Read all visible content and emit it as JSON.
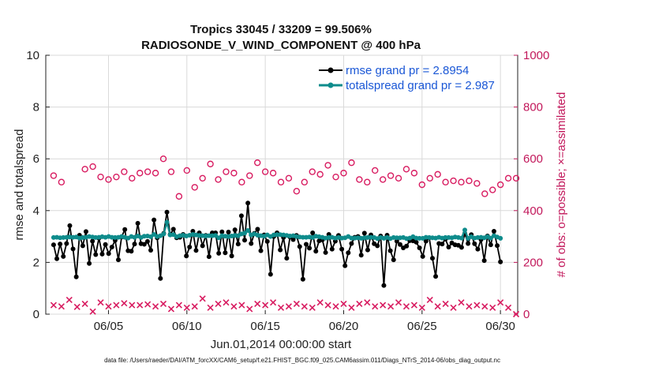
{
  "chart_data": {
    "type": "line",
    "title_line1": "Tropics 33045 / 33209 = 99.506%",
    "title_line2": "RADIOSONDE_V_WIND_COMPONENT @ 400 hPa",
    "xlabel": "Jun.01,2014 00:00:00 start",
    "ylabel_left": "rmse and totalspread",
    "ylabel_right": "# of obs: o=possible; ×=assimilated",
    "footnote": "data file: /Users/raeder/DAI/ATM_forcXX/CAM6_setup/f.e21.FHIST_BGC.f09_025.CAM6assim.011/Diags_NTrS_2014-06/obs_diag_output.nc",
    "xlim": [
      0.5,
      30.6
    ],
    "ylim_left": [
      0,
      10
    ],
    "ylim_right": [
      0,
      1000
    ],
    "x_ticks": [
      4.5,
      9.5,
      14.5,
      19.5,
      24.5,
      29.5
    ],
    "x_tick_labels": [
      "06/05",
      "06/10",
      "06/15",
      "06/20",
      "06/25",
      "06/30"
    ],
    "y_left_ticks": [
      "0",
      "2",
      "4",
      "6",
      "8",
      "10"
    ],
    "y_right_ticks": [
      "0",
      "200",
      "400",
      "600",
      "800",
      "1000"
    ],
    "colors": {
      "rmse": "#000000",
      "spread": "#0f8c8c",
      "obs": "#d81b60",
      "legend_text": "#1a57d6"
    },
    "series": [
      {
        "name": "rmse grand pr = 2.8954",
        "axis": "left",
        "values": [
          2.68,
          2.14,
          2.71,
          2.23,
          2.73,
          3.42,
          2.52,
          1.44,
          3.05,
          2.64,
          3.19,
          1.96,
          2.82,
          2.3,
          2.94,
          2.32,
          2.69,
          2.34,
          2.59,
          2.85,
          2.1,
          2.98,
          3.27,
          2.45,
          2.43,
          2.71,
          3.51,
          2.72,
          2.7,
          2.81,
          2.47,
          3.64,
          2.95,
          1.38,
          3.12,
          3.94,
          3.08,
          3.28,
          2.95,
          2.97,
          3.08,
          2.25,
          2.59,
          3.2,
          2.46,
          3.14,
          2.64,
          3.04,
          2.22,
          3.14,
          3.14,
          2.35,
          3.18,
          2.37,
          3.17,
          2.25,
          3.26,
          2.71,
          3.8,
          2.86,
          4.29,
          2.73,
          3.12,
          3.28,
          2.45,
          3.06,
          2.81,
          1.54,
          3.0,
          3.14,
          2.48,
          2.96,
          2.16,
          2.98,
          2.88,
          3.04,
          2.61,
          1.35,
          2.7,
          2.55,
          3.14,
          2.43,
          2.83,
          2.87,
          2.38,
          3.08,
          2.51,
          2.82,
          3.04,
          2.51,
          1.87,
          2.37,
          2.73,
          2.97,
          3.0,
          2.28,
          3.13,
          2.48,
          3.06,
          2.72,
          2.64,
          3.02,
          1.11,
          3.05,
          2.45,
          2.1,
          2.82,
          2.69,
          2.56,
          2.63,
          2.84,
          2.83,
          2.78,
          2.56,
          2.23,
          2.82,
          2.95,
          2.16,
          1.46,
          2.73,
          2.71,
          2.9,
          2.59,
          2.75,
          2.68,
          2.66,
          2.58,
          3.12,
          2.73,
          3.07,
          2.72,
          2.51,
          2.88,
          2.07,
          3.02,
          2.68,
          3.2,
          2.65,
          2.02
        ]
      },
      {
        "name": "totalspread grand pr = 2.987",
        "axis": "left",
        "values": [
          2.96,
          2.97,
          2.95,
          2.96,
          2.97,
          2.98,
          2.97,
          2.98,
          2.94,
          2.96,
          2.97,
          3.0,
          2.98,
          2.96,
          2.97,
          2.99,
          2.97,
          3.0,
          2.97,
          2.96,
          2.97,
          3.0,
          2.97,
          2.94,
          3.0,
          2.97,
          3.02,
          2.96,
          3.01,
          3.02,
          2.99,
          3.08,
          3.0,
          3.03,
          3.1,
          3.55,
          3.06,
          3.07,
          2.99,
          3.03,
          3.05,
          3.02,
          3.05,
          3.08,
          3.06,
          3.04,
          3.03,
          3.02,
          3.03,
          3.03,
          3.04,
          2.95,
          3.03,
          3.01,
          3.0,
          3.02,
          3.04,
          3.03,
          3.1,
          3.13,
          3.23,
          3.06,
          3.1,
          3.05,
          3.03,
          3.01,
          3.06,
          3.0,
          3.06,
          3.07,
          3.07,
          3.06,
          3.04,
          3.02,
          3.03,
          3.0,
          2.98,
          2.97,
          2.97,
          2.98,
          2.96,
          3.01,
          2.99,
          2.97,
          2.94,
          2.96,
          2.97,
          2.94,
          2.96,
          2.94,
          2.95,
          3.0,
          2.94,
          2.94,
          2.95,
          2.93,
          2.95,
          2.96,
          2.97,
          2.96,
          2.92,
          2.96,
          2.93,
          2.96,
          2.92,
          2.96,
          2.95,
          2.95,
          2.96,
          2.92,
          2.94,
          2.99,
          2.94,
          2.93,
          2.93,
          2.97,
          2.96,
          2.95,
          2.94,
          2.97,
          2.94,
          2.96,
          2.96,
          2.95,
          2.98,
          2.96,
          2.94,
          3.25,
          2.93,
          2.99,
          2.94,
          2.96,
          2.97,
          2.95,
          2.99,
          2.94,
          3.03,
          2.98,
          2.93
        ]
      },
      {
        "name": "possible obs",
        "axis": "right",
        "marker": "o",
        "x": [
          1,
          1.5,
          3,
          3.5,
          4,
          4.5,
          5,
          5.5,
          6,
          6.5,
          7,
          7.5,
          8,
          8.5,
          9,
          9.5,
          10,
          10.5,
          11,
          11.5,
          12,
          12.5,
          13,
          13.5,
          14,
          14.5,
          15,
          15.5,
          16,
          16.5,
          17,
          17.5,
          18,
          18.5,
          19,
          19.5,
          20,
          20.5,
          21,
          21.5,
          22,
          22.5,
          23,
          23.5,
          24,
          24.5,
          25,
          25.5,
          26,
          26.5,
          27,
          27.5,
          28,
          28.5,
          29,
          29.5,
          30,
          30.5
        ],
        "values": [
          535,
          510,
          560,
          570,
          530,
          520,
          530,
          550,
          525,
          545,
          550,
          545,
          600,
          550,
          455,
          555,
          490,
          525,
          580,
          520,
          550,
          545,
          510,
          535,
          585,
          550,
          545,
          510,
          525,
          475,
          510,
          550,
          540,
          575,
          530,
          545,
          585,
          520,
          510,
          555,
          520,
          535,
          525,
          560,
          545,
          500,
          525,
          540,
          510,
          515,
          510,
          515,
          505,
          465,
          480,
          500,
          525,
          525
        ]
      },
      {
        "name": "assimilated obs",
        "axis": "right",
        "marker": "x",
        "x": [
          1,
          1.5,
          2,
          2.5,
          3,
          3.5,
          4,
          4.5,
          5,
          5.5,
          6,
          6.5,
          7,
          7.5,
          8,
          8.5,
          9,
          9.5,
          10,
          10.5,
          11,
          11.5,
          12,
          12.5,
          13,
          13.5,
          14,
          14.5,
          15,
          15.5,
          16,
          16.5,
          17,
          17.5,
          18,
          18.5,
          19,
          19.5,
          20,
          20.5,
          21,
          21.5,
          22,
          22.5,
          23,
          23.5,
          24,
          24.5,
          25,
          25.5,
          26,
          26.5,
          27,
          27.5,
          28,
          28.5,
          29,
          29.5,
          30,
          30.5
        ],
        "values": [
          35,
          30,
          55,
          28,
          40,
          10,
          45,
          30,
          35,
          42,
          35,
          35,
          38,
          30,
          40,
          20,
          35,
          25,
          30,
          60,
          25,
          40,
          45,
          30,
          35,
          20,
          40,
          35,
          45,
          25,
          30,
          40,
          30,
          25,
          45,
          35,
          30,
          40,
          25,
          40,
          45,
          30,
          35,
          30,
          45,
          30,
          35,
          25,
          55,
          30,
          40,
          25,
          45,
          30,
          35,
          30,
          25,
          45,
          25,
          0
        ]
      }
    ]
  }
}
